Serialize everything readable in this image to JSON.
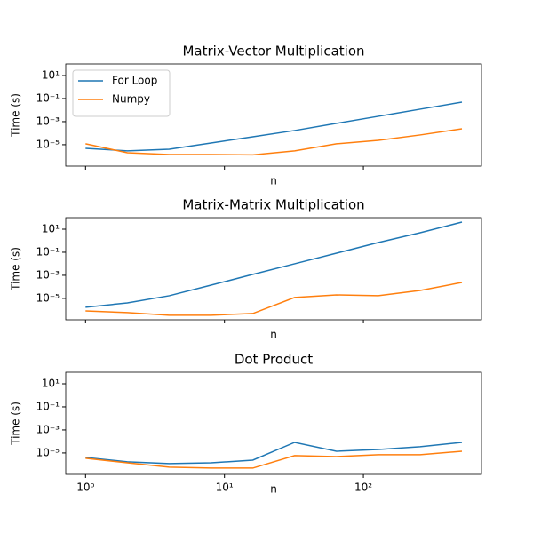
{
  "chart_data": [
    {
      "type": "line",
      "title": "Matrix-Vector Multiplication",
      "xlabel": "n",
      "ylabel": "Time (s)",
      "x": [
        1,
        2,
        4,
        8,
        16,
        32,
        64,
        128,
        256,
        512
      ],
      "series": [
        {
          "name": "For Loop",
          "color": "#1f77b4",
          "values": [
            4.9e-06,
            2.9e-06,
            4.1e-06,
            1.4e-05,
            4.9e-05,
            0.00017,
            0.00071,
            0.0029,
            0.012,
            0.049
          ]
        },
        {
          "name": "Numpy",
          "color": "#ff7f0e",
          "values": [
            1.2e-05,
            2e-06,
            1.4e-06,
            1.4e-06,
            1.3e-06,
            2.9e-06,
            1.2e-05,
            2.4e-05,
            7e-05,
            0.00024
          ]
        }
      ],
      "xscale": "log",
      "yscale": "log",
      "xlim": [
        0.72,
        708
      ],
      "ylim": [
        1.4e-07,
        100
      ],
      "xticks": [
        1,
        10,
        100
      ],
      "xticklabels": false,
      "yticks": [
        {
          "value": 10,
          "label": "10¹"
        },
        {
          "value": 0.1,
          "label": "10⁻¹"
        },
        {
          "value": 0.001,
          "label": "10⁻³"
        },
        {
          "value": 1e-05,
          "label": "10⁻⁵"
        }
      ],
      "legend": "upper left"
    },
    {
      "type": "line",
      "title": "Matrix-Matrix Multiplication",
      "xlabel": "n",
      "ylabel": "Time (s)",
      "x": [
        1,
        2,
        4,
        8,
        16,
        32,
        64,
        128,
        256,
        512
      ],
      "series": [
        {
          "color": "#1f77b4",
          "values": [
            1.7e-06,
            4.1e-06,
            1.7e-05,
            0.00014,
            0.0012,
            0.01,
            0.083,
            0.7,
            4.9,
            41
          ]
        },
        {
          "color": "#ff7f0e",
          "values": [
            8.3e-07,
            5.9e-07,
            3.5e-07,
            3.5e-07,
            4.9e-07,
            1.2e-05,
            2e-05,
            1.7e-05,
            4.9e-05,
            0.00024
          ]
        }
      ],
      "xscale": "log",
      "yscale": "log",
      "xlim": [
        0.72,
        708
      ],
      "ylim": [
        1.4e-07,
        100
      ],
      "xticks": [
        1,
        10,
        100
      ],
      "xticklabels": false,
      "yticks": [
        {
          "value": 10,
          "label": "10¹"
        },
        {
          "value": 0.1,
          "label": "10⁻¹"
        },
        {
          "value": 0.001,
          "label": "10⁻³"
        },
        {
          "value": 1e-05,
          "label": "10⁻⁵"
        }
      ]
    },
    {
      "type": "line",
      "title": "Dot Product",
      "xlabel": "n",
      "ylabel": "Time (s)",
      "x": [
        1,
        2,
        4,
        8,
        16,
        32,
        64,
        128,
        256,
        512
      ],
      "series": [
        {
          "color": "#1f77b4",
          "values": [
            4.1e-06,
            1.7e-06,
            1.2e-06,
            1.4e-06,
            2.4e-06,
            8.3e-05,
            1.4e-05,
            2e-05,
            3.5e-05,
            8.3e-05
          ]
        },
        {
          "color": "#ff7f0e",
          "values": [
            3.5e-06,
            1.4e-06,
            5.9e-07,
            4.9e-07,
            4.9e-07,
            5.9e-06,
            4.9e-06,
            7e-06,
            7e-06,
            1.4e-05
          ]
        }
      ],
      "xscale": "log",
      "yscale": "log",
      "xlim": [
        0.72,
        708
      ],
      "ylim": [
        1.4e-07,
        100
      ],
      "xticks": [
        {
          "value": 1,
          "label": "10⁰"
        },
        {
          "value": 10,
          "label": "10¹"
        },
        {
          "value": 100,
          "label": "10²"
        }
      ],
      "xticklabels": true,
      "yticks": [
        {
          "value": 10,
          "label": "10¹"
        },
        {
          "value": 0.1,
          "label": "10⁻¹"
        },
        {
          "value": 0.001,
          "label": "10⁻³"
        },
        {
          "value": 1e-05,
          "label": "10⁻⁵"
        }
      ]
    }
  ]
}
